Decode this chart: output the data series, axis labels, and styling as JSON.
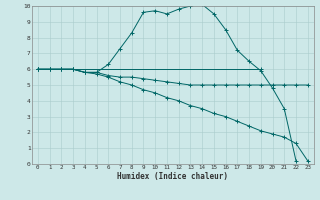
{
  "title": "",
  "xlabel": "Humidex (Indice chaleur)",
  "bg_color": "#cde8e8",
  "line_color": "#006666",
  "grid_color": "#aacccc",
  "xlim": [
    -0.5,
    23.5
  ],
  "ylim": [
    0,
    10
  ],
  "xticks": [
    0,
    1,
    2,
    3,
    4,
    5,
    6,
    7,
    8,
    9,
    10,
    11,
    12,
    13,
    14,
    15,
    16,
    17,
    18,
    19,
    20,
    21,
    22,
    23
  ],
  "yticks": [
    0,
    1,
    2,
    3,
    4,
    5,
    6,
    7,
    8,
    9,
    10
  ],
  "series": [
    {
      "x": [
        0,
        19
      ],
      "y": [
        6,
        6
      ]
    },
    {
      "x": [
        0,
        1,
        2,
        3,
        4,
        5,
        6,
        7,
        8,
        9,
        10,
        11,
        12,
        13,
        14,
        15,
        16,
        17,
        18,
        19,
        20,
        21,
        22,
        23
      ],
      "y": [
        6,
        6,
        6,
        6,
        5.8,
        5.8,
        5.6,
        5.5,
        5.5,
        5.4,
        5.3,
        5.2,
        5.1,
        5.0,
        5.0,
        5.0,
        5.0,
        5.0,
        5.0,
        5.0,
        5.0,
        5.0,
        5.0,
        5.0
      ]
    },
    {
      "x": [
        0,
        1,
        2,
        3,
        4,
        5,
        6,
        7,
        8,
        9,
        10,
        11,
        12,
        13,
        14,
        15,
        16,
        17,
        18,
        19,
        20,
        21,
        22,
        23
      ],
      "y": [
        6,
        6,
        6,
        6,
        5.8,
        5.7,
        5.5,
        5.2,
        5.0,
        4.7,
        4.5,
        4.2,
        4.0,
        3.7,
        3.5,
        3.2,
        3.0,
        2.7,
        2.4,
        2.1,
        1.9,
        1.7,
        1.3,
        0.2
      ]
    },
    {
      "x": [
        0,
        1,
        2,
        3,
        4,
        5,
        6,
        7,
        8,
        9,
        10,
        11,
        12,
        13,
        14,
        15,
        16,
        17,
        18,
        19,
        20,
        21,
        22,
        23
      ],
      "y": [
        6,
        6,
        6,
        6,
        5.8,
        5.8,
        6.3,
        7.3,
        8.3,
        9.6,
        9.7,
        9.5,
        9.8,
        10.0,
        10.1,
        9.5,
        8.5,
        7.2,
        6.5,
        5.9,
        4.8,
        3.5,
        0.2,
        null
      ]
    }
  ]
}
